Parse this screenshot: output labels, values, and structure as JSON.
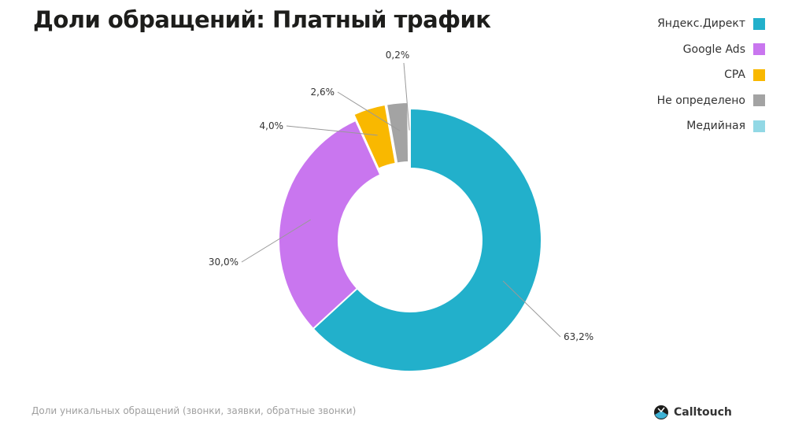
{
  "title": "Доли обращений: Платный трафик",
  "footnote": "Доли уникальных обращений (звонки, заявки, обратные звонки)",
  "brand": "Calltouch",
  "chart_data": {
    "type": "pie",
    "donut": true,
    "title": "Доли обращений: Платный трафик",
    "legend_position": "top-right",
    "categories": [
      "Яндекс.Директ",
      "Google Ads",
      "CPA",
      "Не определено",
      "Медийная"
    ],
    "values": [
      63.2,
      30.0,
      4.0,
      2.6,
      0.2
    ],
    "labels": [
      "63,2%",
      "30,0%",
      "4,0%",
      "2,6%",
      "0,2%"
    ],
    "colors": [
      "#22b0cb",
      "#c976ef",
      "#f9b800",
      "#a3a3a3",
      "#92d8e5"
    ]
  }
}
